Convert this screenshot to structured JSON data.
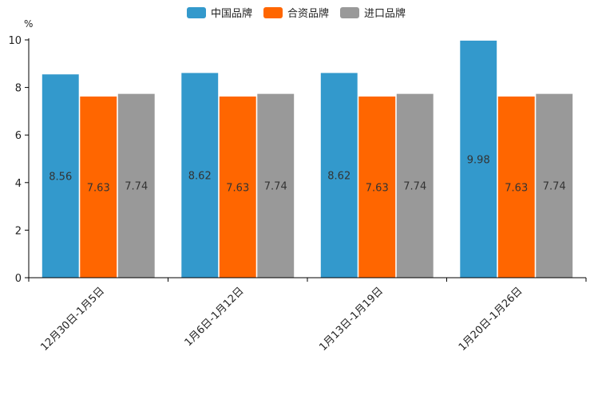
{
  "chart_data": {
    "type": "bar",
    "title": "",
    "xlabel": "",
    "ylabel": "%",
    "ylim": [
      0,
      10
    ],
    "yticks": [
      0,
      2,
      4,
      6,
      8,
      10
    ],
    "grid": false,
    "legend_position": "top-center",
    "categories": [
      "12月30日-1月5日",
      "1月6日-1月12日",
      "1月13日-1月19日",
      "1月20日-1月26日"
    ],
    "series": [
      {
        "name": "中国品牌",
        "color": "#3399CC",
        "values": [
          8.56,
          8.62,
          8.62,
          9.98
        ],
        "labels": [
          "8.56",
          "8.62",
          "8.62",
          "9.98"
        ]
      },
      {
        "name": "合资品牌",
        "color": "#FF6600",
        "values": [
          7.63,
          7.63,
          7.63,
          7.63
        ],
        "labels": [
          "7.63",
          "7.63",
          "7.63",
          "7.63"
        ]
      },
      {
        "name": "进口品牌",
        "color": "#999999",
        "values": [
          7.74,
          7.74,
          7.74,
          7.74
        ],
        "labels": [
          "7.74",
          "7.74",
          "7.74",
          "7.74"
        ]
      }
    ]
  }
}
